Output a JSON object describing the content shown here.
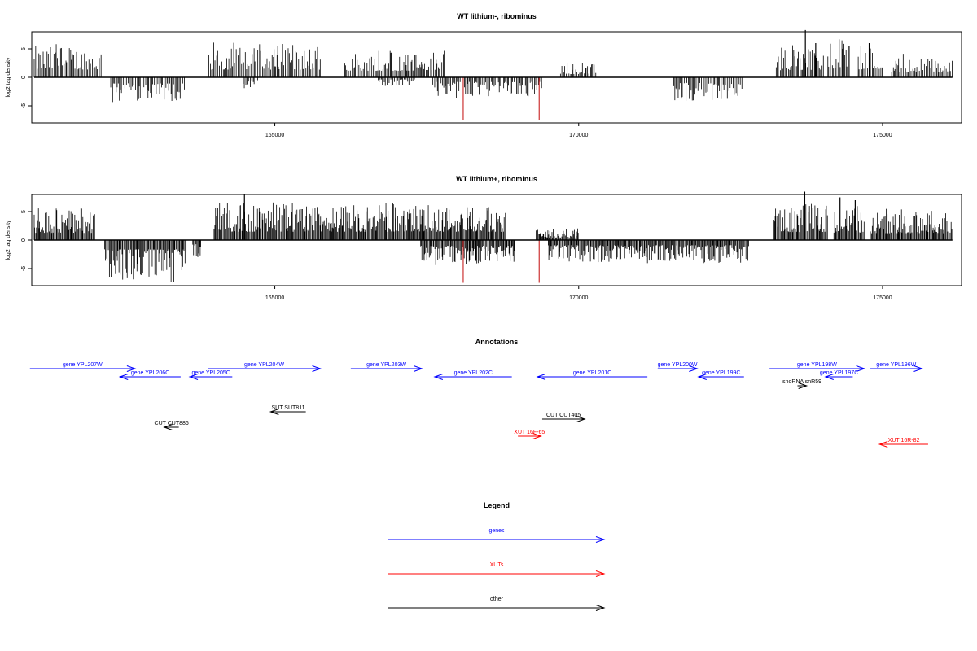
{
  "colors": {
    "genes": "#0000ff",
    "xuts": "#ff0000",
    "other": "#000000",
    "axis": "#000000",
    "peak": "#cc3333"
  },
  "chart_data": [
    {
      "type": "bar",
      "title": "WT lithium-, ribominus",
      "ylabel": "log2 tag density",
      "xlim": [
        161000,
        176300
      ],
      "ylim": [
        -8,
        8
      ],
      "xticks": [
        165000,
        170000,
        175000
      ],
      "yticks": [
        -5,
        0,
        5
      ],
      "density": "low",
      "segments": [
        {
          "strand": "+",
          "start": 161040,
          "end": 162150,
          "amp": 5.5
        },
        {
          "strand": "-",
          "start": 162300,
          "end": 163550,
          "amp": 4.2
        },
        {
          "strand": "+",
          "start": 163900,
          "end": 165750,
          "amp": 5.4
        },
        {
          "strand": "-",
          "start": 164480,
          "end": 164720,
          "amp": 2.0
        },
        {
          "strand": "+",
          "start": 166150,
          "end": 167800,
          "amp": 4.6
        },
        {
          "strand": "-",
          "start": 166700,
          "end": 167300,
          "amp": 1.5
        },
        {
          "strand": "-",
          "start": 167600,
          "end": 169400,
          "amp": 3.2
        },
        {
          "strand": "+",
          "start": 169700,
          "end": 170300,
          "amp": 2.3
        },
        {
          "strand": "-",
          "start": 171550,
          "end": 172700,
          "amp": 3.8
        },
        {
          "strand": "+",
          "start": 173250,
          "end": 174050,
          "amp": 5.0
        },
        {
          "strand": "+",
          "start": 174100,
          "end": 174450,
          "amp": 6.2
        },
        {
          "strand": "+",
          "start": 174600,
          "end": 175000,
          "amp": 5.6
        },
        {
          "strand": "+",
          "start": 175150,
          "end": 176150,
          "amp": 3.6
        }
      ],
      "spikes": [
        {
          "x": 168100,
          "y": -7.5,
          "color": "peak"
        },
        {
          "x": 169350,
          "y": -7.5,
          "color": "peak"
        },
        {
          "x": 173730,
          "y": 8.3,
          "color": "other"
        },
        {
          "x": 173900,
          "y": 6.0,
          "color": "other"
        },
        {
          "x": 174450,
          "y": 5.5,
          "color": "other"
        },
        {
          "x": 174780,
          "y": 6.0,
          "color": "other"
        }
      ]
    },
    {
      "type": "bar",
      "title": "WT lithium+, ribominus",
      "ylabel": "log2 tag density",
      "xlim": [
        161000,
        176300
      ],
      "ylim": [
        -8,
        8
      ],
      "xticks": [
        165000,
        170000,
        175000
      ],
      "yticks": [
        -5,
        0,
        5
      ],
      "density": "high",
      "segments": [
        {
          "strand": "+",
          "start": 161040,
          "end": 162050,
          "amp": 5.0
        },
        {
          "strand": "-",
          "start": 162200,
          "end": 163550,
          "amp": 6.5
        },
        {
          "strand": "-",
          "start": 163650,
          "end": 163800,
          "amp": 2.8
        },
        {
          "strand": "+",
          "start": 164000,
          "end": 168800,
          "amp": 5.8
        },
        {
          "strand": "-",
          "start": 167400,
          "end": 168950,
          "amp": 4.0
        },
        {
          "strand": "-",
          "start": 169500,
          "end": 172800,
          "amp": 3.6
        },
        {
          "strand": "+",
          "start": 169300,
          "end": 170000,
          "amp": 1.8
        },
        {
          "strand": "+",
          "start": 173200,
          "end": 174100,
          "amp": 5.6
        },
        {
          "strand": "+",
          "start": 174200,
          "end": 174700,
          "amp": 5.2
        },
        {
          "strand": "+",
          "start": 174800,
          "end": 176150,
          "amp": 4.8
        }
      ],
      "spikes": [
        {
          "x": 164500,
          "y": 8.0,
          "color": "other"
        },
        {
          "x": 168100,
          "y": -7.5,
          "color": "peak"
        },
        {
          "x": 169350,
          "y": -7.5,
          "color": "peak"
        },
        {
          "x": 173720,
          "y": 8.5,
          "color": "other"
        },
        {
          "x": 174300,
          "y": 7.5,
          "color": "other"
        },
        {
          "x": 174550,
          "y": 7.0,
          "color": "other"
        }
      ]
    }
  ],
  "annotations": {
    "title": "Annotations",
    "items": [
      {
        "label": "gene YPL207W",
        "x1": 160970,
        "x2": 162700,
        "row": 0,
        "dir": "right",
        "type": "gene"
      },
      {
        "label": "gene YPL206C",
        "x1": 162450,
        "x2": 163450,
        "row": 1,
        "dir": "left",
        "type": "gene"
      },
      {
        "label": "gene YPL205C",
        "x1": 163600,
        "x2": 164300,
        "row": 1,
        "dir": "left",
        "type": "gene"
      },
      {
        "label": "gene YPL204W",
        "x1": 163900,
        "x2": 165750,
        "row": 0,
        "dir": "right",
        "type": "gene"
      },
      {
        "label": "gene YPL203W",
        "x1": 166250,
        "x2": 167420,
        "row": 0,
        "dir": "right",
        "type": "gene"
      },
      {
        "label": "gene YPL202C",
        "x1": 167630,
        "x2": 168900,
        "row": 1,
        "dir": "left",
        "type": "gene"
      },
      {
        "label": "gene YPL201C",
        "x1": 169320,
        "x2": 171130,
        "row": 1,
        "dir": "left",
        "type": "gene"
      },
      {
        "label": "gene YPL200W",
        "x1": 171300,
        "x2": 171950,
        "row": 0,
        "dir": "right",
        "type": "gene"
      },
      {
        "label": "gene YPL199C",
        "x1": 171970,
        "x2": 172720,
        "row": 1,
        "dir": "left",
        "type": "gene"
      },
      {
        "label": "gene YPL198W",
        "x1": 173140,
        "x2": 174700,
        "row": 0,
        "dir": "right",
        "type": "gene"
      },
      {
        "label": "gene YPL197C",
        "x1": 174060,
        "x2": 174510,
        "row": 1,
        "dir": "left",
        "type": "gene"
      },
      {
        "label": "gene YPL196W",
        "x1": 174800,
        "x2": 175650,
        "row": 0,
        "dir": "right",
        "type": "gene"
      },
      {
        "label": "snoRNA snR59",
        "x1": 173600,
        "x2": 173750,
        "row": 2,
        "dir": "right",
        "type": "other"
      },
      {
        "label": "SUT SUT811",
        "x1": 164930,
        "x2": 165510,
        "row": 3,
        "dir": "left",
        "type": "other"
      },
      {
        "label": "CUT CUT886",
        "x1": 163180,
        "x2": 163420,
        "row": 5,
        "dir": "left",
        "type": "other"
      },
      {
        "label": "CUT CUT405",
        "x1": 169400,
        "x2": 170100,
        "row": 4,
        "dir": "right",
        "type": "other"
      },
      {
        "label": "XUT 16F-65",
        "x1": 169000,
        "x2": 169380,
        "row": 6,
        "dir": "right",
        "type": "xut"
      },
      {
        "label": "XUT 16R-82",
        "x1": 174950,
        "x2": 175750,
        "row": 7,
        "dir": "left",
        "type": "xut"
      }
    ]
  },
  "legend": {
    "title": "Legend",
    "items": [
      {
        "label": "genes",
        "type": "gene"
      },
      {
        "label": "XUTs",
        "type": "xut"
      },
      {
        "label": "other",
        "type": "other"
      }
    ]
  }
}
